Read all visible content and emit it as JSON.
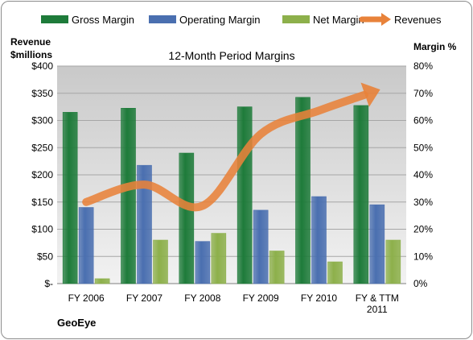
{
  "chart_data": {
    "type": "bar",
    "title": "12-Month Period Margins",
    "left_axis": {
      "label_line1": "Revenue",
      "label_line2": "$millions",
      "range": [
        0,
        400
      ],
      "ticks": [
        "$-",
        "$50",
        "$100",
        "$150",
        "$200",
        "$250",
        "$300",
        "$350",
        "$400"
      ]
    },
    "right_axis": {
      "label": "Margin %",
      "range": [
        0,
        80
      ],
      "ticks": [
        "0%",
        "10%",
        "20%",
        "30%",
        "40%",
        "50%",
        "60%",
        "70%",
        "80%"
      ]
    },
    "categories": [
      [
        "FY 2006"
      ],
      [
        "FY 2007"
      ],
      [
        "FY 2008"
      ],
      [
        "FY 2009"
      ],
      [
        "FY 2010"
      ],
      [
        "FY & TTM",
        "2011"
      ]
    ],
    "series": [
      {
        "name": "Gross Margin",
        "axis": "right",
        "color": "#1e7b3a",
        "values": [
          63,
          64.5,
          48,
          65,
          68.5,
          65.5
        ]
      },
      {
        "name": "Operating Margin",
        "axis": "right",
        "color": "#4a6fb0",
        "values": [
          28,
          43.5,
          15.5,
          27,
          32,
          29
        ]
      },
      {
        "name": "Net Margin",
        "axis": "right",
        "color": "#8db04b",
        "values": [
          1.8,
          16,
          18.5,
          12,
          8,
          16
        ]
      }
    ],
    "line_series": {
      "name": "Revenues",
      "axis": "left",
      "color": "#e8823a",
      "values": [
        150,
        182,
        143,
        275,
        318,
        355
      ]
    },
    "grid": true,
    "legend": "top",
    "company": "GeoEye"
  }
}
